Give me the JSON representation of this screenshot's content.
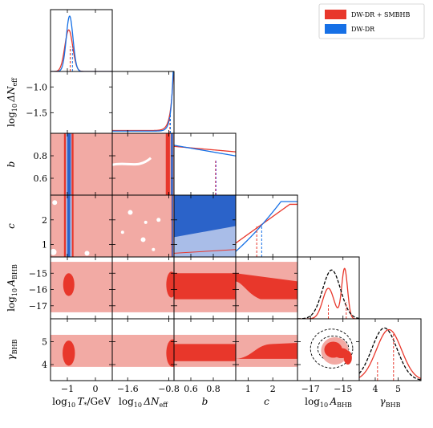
{
  "chart_data": {
    "type": "corner",
    "parameters": [
      {
        "key": "T",
        "label_base": "log",
        "label_sub": "10",
        "label_main": "T",
        "label_star": "*",
        "label_unit": "/GeV",
        "range": [
          -1.6,
          0.6
        ],
        "ticks": [
          -1,
          0
        ],
        "tick_labels": [
          "−1",
          "0"
        ]
      },
      {
        "key": "N",
        "label_base": "log",
        "label_sub": "10",
        "label_main": "ΔN",
        "label_main_sub": "eff",
        "range": [
          -1.9,
          -0.7
        ],
        "ticks": [
          -1.6,
          -0.8
        ],
        "tick_labels": [
          "−1.6",
          "−0.8"
        ],
        "ticks_y": [
          -1.0,
          -1.5
        ],
        "tick_labels_y": [
          "−1.0",
          "−1.5"
        ]
      },
      {
        "key": "b",
        "label_main": "b",
        "range": [
          0.45,
          1.0
        ],
        "ticks": [
          0.6,
          0.8
        ],
        "tick_labels": [
          "0.6",
          "0.8"
        ]
      },
      {
        "key": "c",
        "label_main": "c",
        "range": [
          0.5,
          3.0
        ],
        "ticks": [
          1,
          2
        ],
        "tick_labels": [
          "1",
          "2"
        ],
        "ticks_y": [
          2,
          1
        ],
        "tick_labels_y": [
          "2",
          "1"
        ]
      },
      {
        "key": "A",
        "label_base": "log",
        "label_sub": "10",
        "label_main": "A",
        "label_main_sub": "BHB",
        "range": [
          -17.8,
          -14.0
        ],
        "ticks": [
          -17,
          -15
        ],
        "tick_labels": [
          "−17",
          "−15"
        ],
        "ticks_y": [
          -15,
          -16,
          -17
        ],
        "tick_labels_y": [
          "−15",
          "−16",
          "−17"
        ]
      },
      {
        "key": "g",
        "label_main": "γ",
        "label_main_sub": "BHB",
        "range": [
          3.3,
          6.0
        ],
        "ticks": [
          4,
          5
        ],
        "tick_labels": [
          "4",
          "5"
        ],
        "ticks_y": [
          5,
          4
        ],
        "tick_labels_y": [
          "5",
          "4"
        ]
      }
    ],
    "series": [
      {
        "name": "DW-DR + SMBHB",
        "color": "#e8372b"
      },
      {
        "name": "DW-DR",
        "color": "#1670e6"
      },
      {
        "name": "",
        "color": "#000000",
        "style": "dashed"
      }
    ],
    "marginal_medians": {
      "T": -0.9,
      "N": -0.78,
      "b": 0.82,
      "c": [
        1.35,
        1.55
      ],
      "A": -15.9,
      "g": [
        4.1,
        4.8
      ]
    },
    "colors": {
      "red_fill": "#f2aaa4",
      "red_dark": "#e8372b",
      "blue_fill": "#a9bde8",
      "blue_dark": "#2b63c9",
      "dashed_circle": "#000000"
    }
  }
}
